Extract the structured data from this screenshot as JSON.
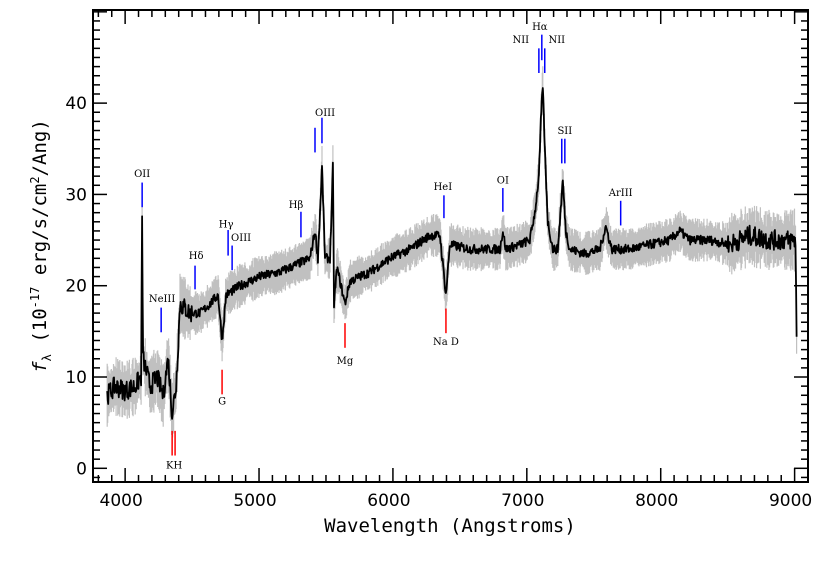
{
  "chart_data": {
    "type": "line",
    "title": "",
    "xlabel": "Wavelength (Angstroms)",
    "ylabel": "f_λ (10^-17 erg/s/cm^2/Ang)",
    "xlim": [
      3760,
      9100
    ],
    "ylim": [
      -1.5,
      50.2
    ],
    "xticks": [
      4000,
      5000,
      6000,
      7000,
      8000,
      9000
    ],
    "yticks": [
      0,
      10,
      20,
      30,
      40
    ],
    "grid": false,
    "colors": {
      "spectrum": "#000000",
      "error": "#c0c0c0",
      "emission": "#0000ff",
      "absorption": "#ff0000"
    },
    "series": [
      {
        "name": "spectrum",
        "x": [
          3866,
          3925,
          4000,
          4075,
          4119,
          4127,
          4134,
          4187,
          4239,
          4284,
          4321,
          4351,
          4381,
          4410,
          4485,
          4560,
          4634,
          4694,
          4724,
          4754,
          4858,
          5007,
          5157,
          5306,
          5381,
          5418,
          5440,
          5470,
          5493,
          5530,
          5552,
          5560,
          5582,
          5642,
          5679,
          5828,
          5978,
          6127,
          6276,
          6351,
          6396,
          6425,
          6575,
          6724,
          6799,
          6821,
          6843,
          6948,
          7022,
          7060,
          7090,
          7105,
          7119,
          7134,
          7157,
          7194,
          7231,
          7269,
          7291,
          7321,
          7433,
          7545,
          7590,
          7634,
          7769,
          7918,
          8067,
          8142,
          8216,
          8366,
          8515,
          8664,
          8813,
          8925,
          9007,
          9015
        ],
        "y": [
          8,
          9,
          8.5,
          9,
          10,
          27,
          12,
          9,
          10,
          8,
          12,
          6,
          9,
          18,
          17,
          17,
          18,
          19,
          14,
          19,
          20,
          21,
          21.5,
          22.5,
          23,
          26,
          23,
          33,
          23,
          23,
          33,
          18,
          22,
          18,
          20.5,
          21.5,
          23,
          24,
          25.5,
          25.5,
          19,
          24.5,
          24,
          24,
          24,
          26,
          24,
          24.5,
          25,
          28,
          32,
          38,
          42,
          35,
          27,
          24,
          24,
          31.5,
          26,
          24,
          23.5,
          24,
          26.5,
          24,
          24,
          24.5,
          25,
          26,
          25,
          25,
          24.5,
          25.5,
          25,
          25,
          25,
          14
        ]
      }
    ],
    "line_markers": [
      {
        "lam": 4127,
        "top": 31.3,
        "bottom": 28.6,
        "kind": "emission"
      },
      {
        "lam": 4269,
        "top": 17.6,
        "bottom": 14.9,
        "kind": "emission"
      },
      {
        "lam": 4522,
        "top": 22.2,
        "bottom": 19.6,
        "kind": "emission"
      },
      {
        "lam": 4769,
        "top": 26.1,
        "bottom": 23.3,
        "kind": "emission"
      },
      {
        "lam": 4799,
        "top": 24.4,
        "bottom": 21.7,
        "kind": "emission"
      },
      {
        "lam": 5313,
        "top": 28.1,
        "bottom": 25.3,
        "kind": "emission"
      },
      {
        "lam": 5418,
        "top": 37.3,
        "bottom": 34.6,
        "kind": "emission"
      },
      {
        "lam": 5470,
        "top": 38.4,
        "bottom": 35.6,
        "kind": "emission"
      },
      {
        "lam": 6381,
        "top": 29.9,
        "bottom": 27.4,
        "kind": "emission"
      },
      {
        "lam": 6821,
        "top": 30.7,
        "bottom": 28.1,
        "kind": "emission"
      },
      {
        "lam": 7090,
        "top": 46.0,
        "bottom": 43.3,
        "kind": "emission"
      },
      {
        "lam": 7112,
        "top": 47.5,
        "bottom": 44.7,
        "kind": "emission"
      },
      {
        "lam": 7134,
        "top": 46.0,
        "bottom": 43.3,
        "kind": "emission"
      },
      {
        "lam": 7261,
        "top": 36.1,
        "bottom": 33.4,
        "kind": "emission"
      },
      {
        "lam": 7284,
        "top": 36.1,
        "bottom": 33.4,
        "kind": "emission"
      },
      {
        "lam": 7701,
        "top": 29.3,
        "bottom": 26.6,
        "kind": "emission"
      },
      {
        "lam": 4351,
        "top": 4.1,
        "bottom": 1.4,
        "kind": "absorption"
      },
      {
        "lam": 4373,
        "top": 4.1,
        "bottom": 1.4,
        "kind": "absorption"
      },
      {
        "lam": 4724,
        "top": 10.8,
        "bottom": 8.1,
        "kind": "absorption"
      },
      {
        "lam": 5642,
        "top": 15.9,
        "bottom": 13.2,
        "kind": "absorption"
      },
      {
        "lam": 6396,
        "top": 17.5,
        "bottom": 14.8,
        "kind": "absorption"
      }
    ],
    "line_labels": [
      {
        "text": "OII",
        "lam": 4127,
        "flux": 31.9,
        "anchor": "middle"
      },
      {
        "text": "NeIII",
        "lam": 4276,
        "flux": 18.2,
        "anchor": "middle"
      },
      {
        "text": "Hδ",
        "lam": 4530,
        "flux": 22.9,
        "anchor": "middle"
      },
      {
        "text": "Hγ",
        "lam": 4754,
        "flux": 26.4,
        "anchor": "middle"
      },
      {
        "text": "OIII",
        "lam": 4866,
        "flux": 24.9,
        "anchor": "middle"
      },
      {
        "text": "Hβ",
        "lam": 5276,
        "flux": 28.5,
        "anchor": "middle"
      },
      {
        "text": "OIII",
        "lam": 5493,
        "flux": 38.6,
        "anchor": "middle"
      },
      {
        "text": "HeI",
        "lam": 6373,
        "flux": 30.5,
        "anchor": "middle"
      },
      {
        "text": "OI",
        "lam": 6821,
        "flux": 31.2,
        "anchor": "middle"
      },
      {
        "text": "NII",
        "lam": 6955,
        "flux": 46.6,
        "anchor": "middle"
      },
      {
        "text": "Hα",
        "lam": 7097,
        "flux": 48.0,
        "anchor": "middle"
      },
      {
        "text": "NII",
        "lam": 7224,
        "flux": 46.6,
        "anchor": "middle"
      },
      {
        "text": "SII",
        "lam": 7284,
        "flux": 36.6,
        "anchor": "middle"
      },
      {
        "text": "ArIII",
        "lam": 7701,
        "flux": 29.8,
        "anchor": "middle"
      },
      {
        "text": "KH",
        "lam": 4366,
        "flux": 0.0,
        "anchor": "middle"
      },
      {
        "text": "G",
        "lam": 4724,
        "flux": 7.0,
        "anchor": "middle"
      },
      {
        "text": "Mg",
        "lam": 5642,
        "flux": 11.4,
        "anchor": "middle"
      },
      {
        "text": "Na D",
        "lam": 6396,
        "flux": 13.5,
        "anchor": "middle"
      }
    ]
  }
}
